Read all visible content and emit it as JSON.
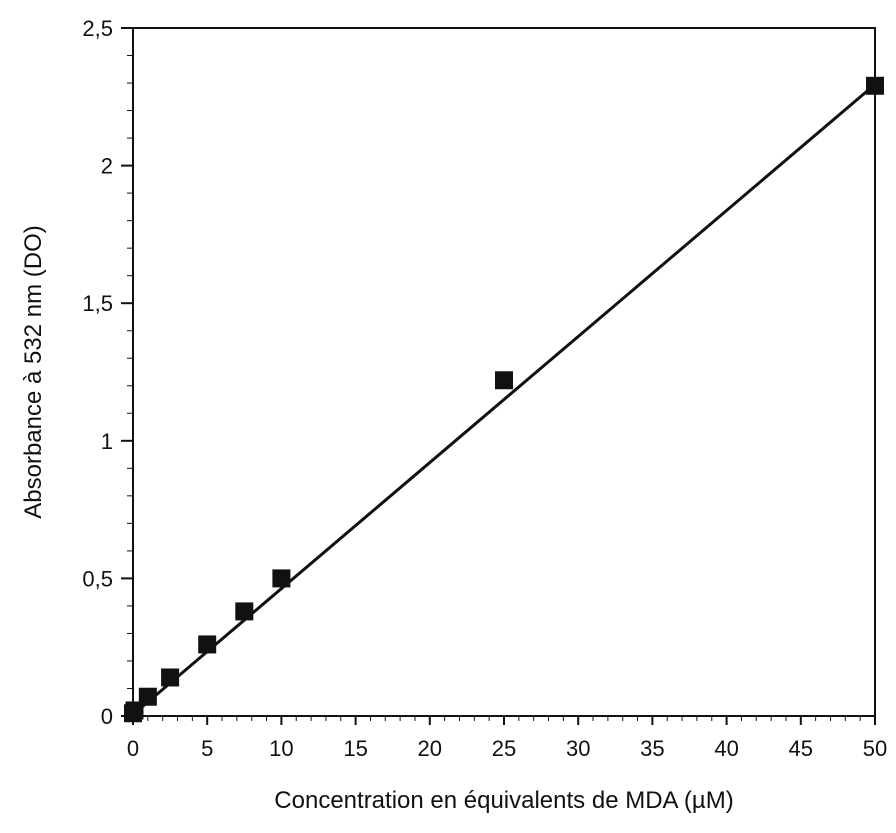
{
  "chart_data": {
    "type": "scatter",
    "title": "",
    "xlabel": "Concentration en équivalents de MDA (µM)",
    "ylabel": "Absorbance à 532 nm (DO)",
    "xlim": [
      0,
      50
    ],
    "ylim": [
      0,
      2.5
    ],
    "x_ticks": [
      0,
      5,
      10,
      15,
      20,
      25,
      30,
      35,
      40,
      45,
      50
    ],
    "x_tick_labels": [
      "0",
      "5",
      "10",
      "15",
      "20",
      "25",
      "30",
      "35",
      "40",
      "45",
      "50"
    ],
    "y_ticks": [
      0,
      0.5,
      1,
      1.5,
      2,
      2.5
    ],
    "y_tick_labels": [
      "0",
      "0,5",
      "1",
      "1,5",
      "2",
      "2,5"
    ],
    "grid": false,
    "legend": "none",
    "series": [
      {
        "marker": "filled-square",
        "color": "#111111",
        "points": [
          {
            "x": 0,
            "y": 0.01
          },
          {
            "x": 0.1,
            "y": 0.02
          },
          {
            "x": 1,
            "y": 0.07
          },
          {
            "x": 2.5,
            "y": 0.14
          },
          {
            "x": 5,
            "y": 0.26
          },
          {
            "x": 7.5,
            "y": 0.38
          },
          {
            "x": 10,
            "y": 0.5
          },
          {
            "x": 25,
            "y": 1.22
          },
          {
            "x": 50,
            "y": 2.29
          }
        ]
      }
    ],
    "fit_line": {
      "x": [
        0,
        50
      ],
      "y": [
        0.005,
        2.295
      ],
      "color": "#111111"
    }
  }
}
